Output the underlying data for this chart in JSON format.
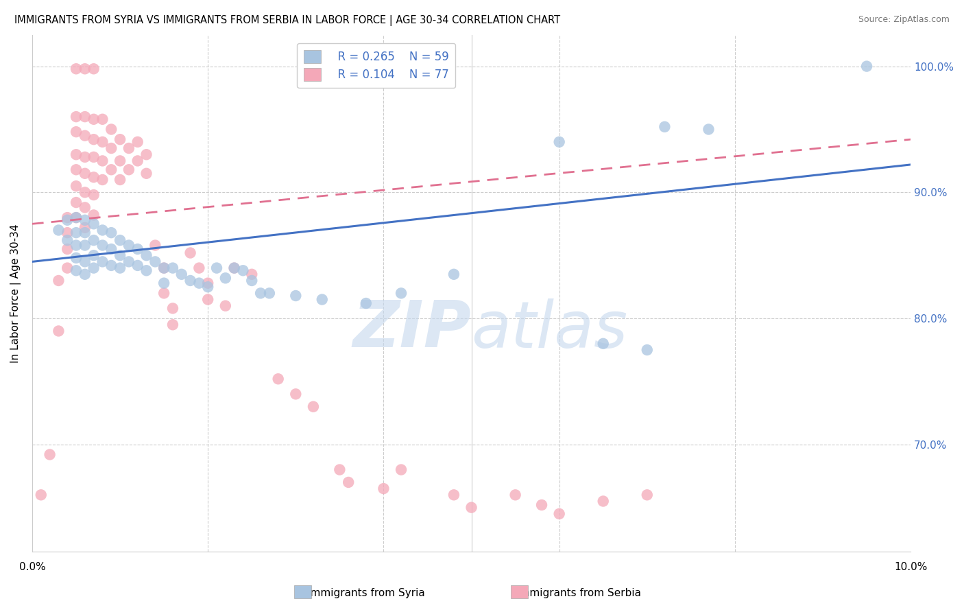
{
  "title": "IMMIGRANTS FROM SYRIA VS IMMIGRANTS FROM SERBIA IN LABOR FORCE | AGE 30-34 CORRELATION CHART",
  "source": "Source: ZipAtlas.com",
  "ylabel": "In Labor Force | Age 30-34",
  "ytick_labels": [
    "100.0%",
    "90.0%",
    "80.0%",
    "70.0%"
  ],
  "ytick_values": [
    1.0,
    0.9,
    0.8,
    0.7
  ],
  "xlim": [
    0.0,
    0.1
  ],
  "ylim": [
    0.615,
    1.025
  ],
  "legend_r_syria": "R = 0.265",
  "legend_n_syria": "N = 59",
  "legend_r_serbia": "R = 0.104",
  "legend_n_serbia": "N = 77",
  "color_syria": "#a8c4e0",
  "color_serbia": "#f4a8b8",
  "color_line_syria": "#4472c4",
  "color_line_serbia": "#e07090",
  "watermark_zip": "ZIP",
  "watermark_atlas": "atlas",
  "syria_points": [
    [
      0.003,
      0.87
    ],
    [
      0.004,
      0.878
    ],
    [
      0.004,
      0.862
    ],
    [
      0.005,
      0.88
    ],
    [
      0.005,
      0.868
    ],
    [
      0.005,
      0.858
    ],
    [
      0.005,
      0.848
    ],
    [
      0.005,
      0.838
    ],
    [
      0.006,
      0.878
    ],
    [
      0.006,
      0.868
    ],
    [
      0.006,
      0.858
    ],
    [
      0.006,
      0.845
    ],
    [
      0.006,
      0.835
    ],
    [
      0.007,
      0.875
    ],
    [
      0.007,
      0.862
    ],
    [
      0.007,
      0.85
    ],
    [
      0.007,
      0.84
    ],
    [
      0.008,
      0.87
    ],
    [
      0.008,
      0.858
    ],
    [
      0.008,
      0.845
    ],
    [
      0.009,
      0.868
    ],
    [
      0.009,
      0.855
    ],
    [
      0.009,
      0.842
    ],
    [
      0.01,
      0.862
    ],
    [
      0.01,
      0.85
    ],
    [
      0.01,
      0.84
    ],
    [
      0.011,
      0.858
    ],
    [
      0.011,
      0.845
    ],
    [
      0.012,
      0.855
    ],
    [
      0.012,
      0.842
    ],
    [
      0.013,
      0.85
    ],
    [
      0.013,
      0.838
    ],
    [
      0.014,
      0.845
    ],
    [
      0.015,
      0.84
    ],
    [
      0.015,
      0.828
    ],
    [
      0.016,
      0.84
    ],
    [
      0.017,
      0.835
    ],
    [
      0.018,
      0.83
    ],
    [
      0.019,
      0.828
    ],
    [
      0.02,
      0.825
    ],
    [
      0.021,
      0.84
    ],
    [
      0.022,
      0.832
    ],
    [
      0.023,
      0.84
    ],
    [
      0.024,
      0.838
    ],
    [
      0.025,
      0.83
    ],
    [
      0.026,
      0.82
    ],
    [
      0.027,
      0.82
    ],
    [
      0.03,
      0.818
    ],
    [
      0.033,
      0.815
    ],
    [
      0.038,
      0.812
    ],
    [
      0.042,
      0.82
    ],
    [
      0.048,
      0.835
    ],
    [
      0.06,
      0.94
    ],
    [
      0.065,
      0.78
    ],
    [
      0.07,
      0.775
    ],
    [
      0.072,
      0.952
    ],
    [
      0.077,
      0.95
    ],
    [
      0.095,
      1.0
    ]
  ],
  "serbia_points": [
    [
      0.001,
      0.66
    ],
    [
      0.002,
      0.692
    ],
    [
      0.003,
      0.79
    ],
    [
      0.003,
      0.83
    ],
    [
      0.004,
      0.88
    ],
    [
      0.004,
      0.868
    ],
    [
      0.004,
      0.855
    ],
    [
      0.004,
      0.84
    ],
    [
      0.005,
      0.998
    ],
    [
      0.005,
      0.96
    ],
    [
      0.005,
      0.948
    ],
    [
      0.005,
      0.93
    ],
    [
      0.005,
      0.918
    ],
    [
      0.005,
      0.905
    ],
    [
      0.005,
      0.892
    ],
    [
      0.005,
      0.88
    ],
    [
      0.006,
      0.998
    ],
    [
      0.006,
      0.96
    ],
    [
      0.006,
      0.945
    ],
    [
      0.006,
      0.928
    ],
    [
      0.006,
      0.915
    ],
    [
      0.006,
      0.9
    ],
    [
      0.006,
      0.888
    ],
    [
      0.006,
      0.872
    ],
    [
      0.007,
      0.998
    ],
    [
      0.007,
      0.958
    ],
    [
      0.007,
      0.942
    ],
    [
      0.007,
      0.928
    ],
    [
      0.007,
      0.912
    ],
    [
      0.007,
      0.898
    ],
    [
      0.007,
      0.882
    ],
    [
      0.008,
      0.958
    ],
    [
      0.008,
      0.94
    ],
    [
      0.008,
      0.925
    ],
    [
      0.008,
      0.91
    ],
    [
      0.009,
      0.95
    ],
    [
      0.009,
      0.935
    ],
    [
      0.009,
      0.918
    ],
    [
      0.01,
      0.942
    ],
    [
      0.01,
      0.925
    ],
    [
      0.01,
      0.91
    ],
    [
      0.011,
      0.935
    ],
    [
      0.011,
      0.918
    ],
    [
      0.012,
      0.94
    ],
    [
      0.012,
      0.925
    ],
    [
      0.013,
      0.93
    ],
    [
      0.013,
      0.915
    ],
    [
      0.014,
      0.858
    ],
    [
      0.015,
      0.84
    ],
    [
      0.015,
      0.82
    ],
    [
      0.016,
      0.808
    ],
    [
      0.016,
      0.795
    ],
    [
      0.018,
      0.852
    ],
    [
      0.019,
      0.84
    ],
    [
      0.02,
      0.828
    ],
    [
      0.02,
      0.815
    ],
    [
      0.022,
      0.81
    ],
    [
      0.023,
      0.84
    ],
    [
      0.025,
      0.835
    ],
    [
      0.028,
      0.752
    ],
    [
      0.03,
      0.74
    ],
    [
      0.032,
      0.73
    ],
    [
      0.035,
      0.68
    ],
    [
      0.036,
      0.67
    ],
    [
      0.04,
      0.665
    ],
    [
      0.042,
      0.68
    ],
    [
      0.048,
      0.66
    ],
    [
      0.05,
      0.65
    ],
    [
      0.055,
      0.66
    ],
    [
      0.058,
      0.652
    ],
    [
      0.06,
      0.645
    ],
    [
      0.065,
      0.655
    ],
    [
      0.07,
      0.66
    ]
  ]
}
